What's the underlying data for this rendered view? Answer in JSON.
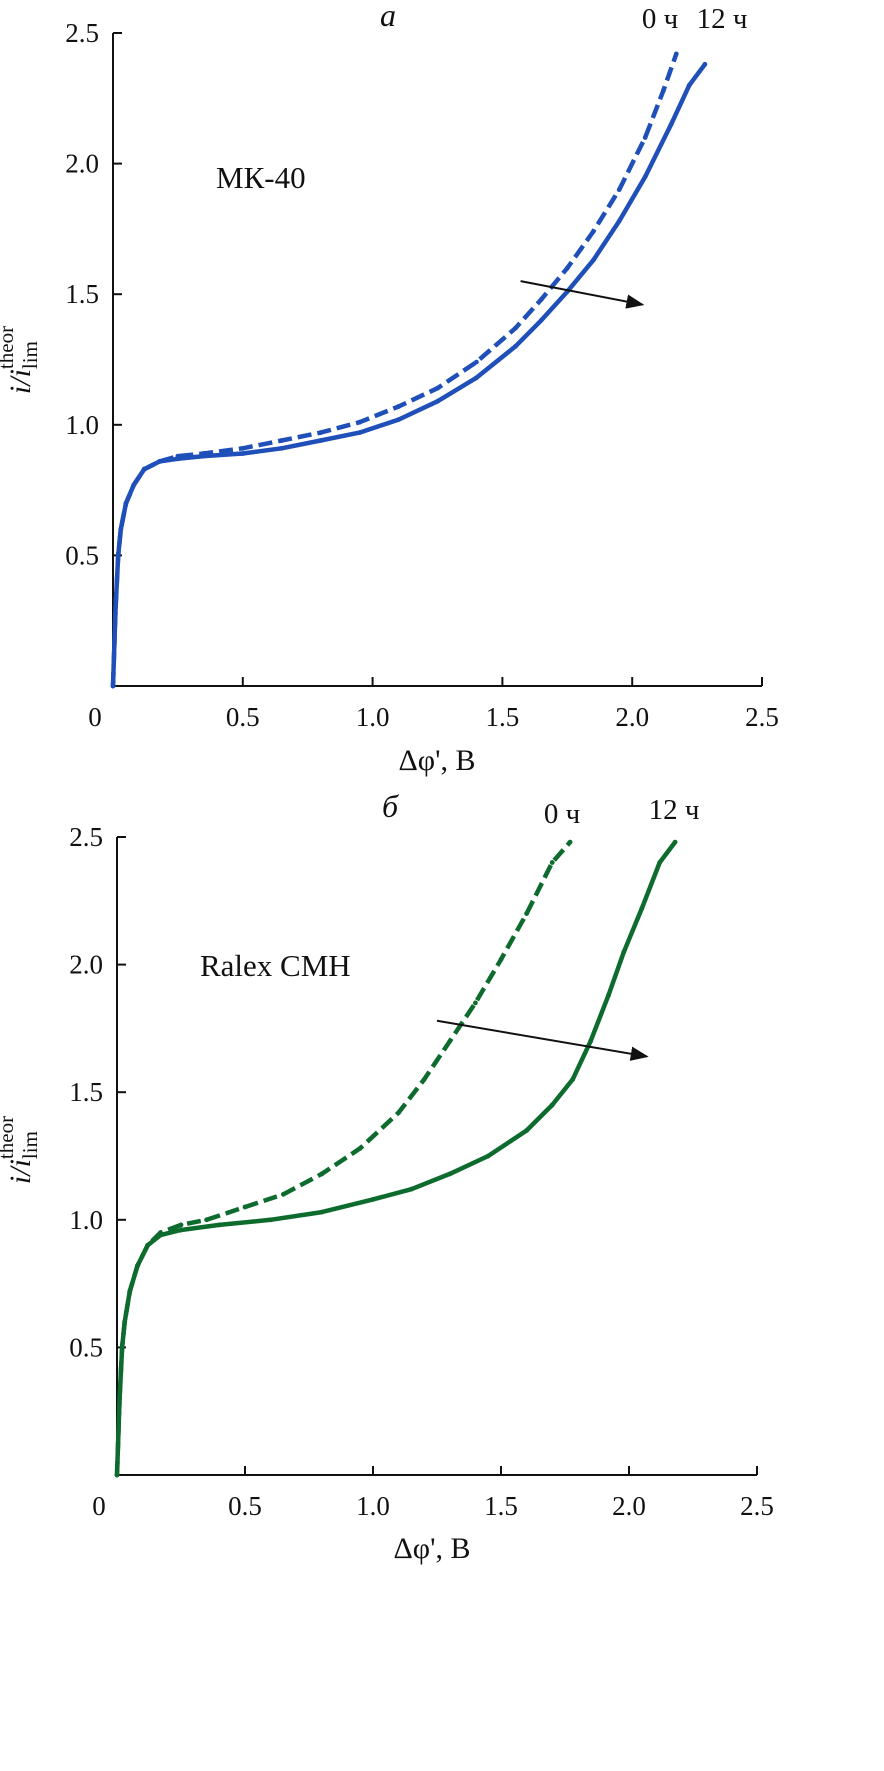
{
  "chart_data": [
    {
      "type": "line",
      "panel_label": "а",
      "annotation": "МК-40",
      "xlabel": "Δφ', В",
      "ylabel": {
        "main": "i/i",
        "sub": "lim",
        "sup": "theor"
      },
      "xlim": [
        0,
        2.5
      ],
      "ylim": [
        0,
        2.5
      ],
      "xticks": [
        "0",
        "0.5",
        "1.0",
        "1.5",
        "2.0",
        "2.5"
      ],
      "yticks": [
        "0.5",
        "1.0",
        "1.5",
        "2.0",
        "2.5"
      ],
      "arrow": {
        "from": [
          1.57,
          1.55
        ],
        "to": [
          2.04,
          1.46
        ]
      },
      "series": [
        {
          "name": "0 ч",
          "color": "#1f4fb8",
          "dash": "dashed",
          "x": [
            0.0,
            0.01,
            0.02,
            0.03,
            0.05,
            0.08,
            0.12,
            0.18,
            0.25,
            0.35,
            0.5,
            0.65,
            0.8,
            0.95,
            1.1,
            1.25,
            1.4,
            1.55,
            1.65,
            1.75,
            1.85,
            1.95,
            2.05,
            2.12,
            2.17
          ],
          "y": [
            0.0,
            0.3,
            0.5,
            0.6,
            0.7,
            0.77,
            0.83,
            0.86,
            0.88,
            0.89,
            0.91,
            0.94,
            0.97,
            1.01,
            1.07,
            1.14,
            1.24,
            1.37,
            1.48,
            1.6,
            1.74,
            1.9,
            2.1,
            2.28,
            2.42
          ]
        },
        {
          "name": "12 ч",
          "color": "#1f4fb8",
          "dash": "solid",
          "x": [
            0.0,
            0.01,
            0.02,
            0.03,
            0.05,
            0.08,
            0.12,
            0.18,
            0.25,
            0.35,
            0.5,
            0.65,
            0.8,
            0.95,
            1.1,
            1.25,
            1.4,
            1.55,
            1.65,
            1.75,
            1.85,
            1.95,
            2.05,
            2.15,
            2.22,
            2.28
          ],
          "y": [
            0.0,
            0.3,
            0.5,
            0.6,
            0.7,
            0.77,
            0.83,
            0.86,
            0.87,
            0.88,
            0.89,
            0.91,
            0.94,
            0.97,
            1.02,
            1.09,
            1.18,
            1.3,
            1.4,
            1.51,
            1.63,
            1.78,
            1.95,
            2.15,
            2.3,
            2.38
          ]
        }
      ]
    },
    {
      "type": "line",
      "panel_label": "б",
      "annotation": "Ralex CMH",
      "xlabel": "Δφ', В",
      "ylabel": {
        "main": "i/i",
        "sub": "lim",
        "sup": "theor"
      },
      "xlim": [
        0,
        2.5
      ],
      "ylim": [
        0,
        2.5
      ],
      "xticks": [
        "0",
        "0.5",
        "1.0",
        "1.5",
        "2.0",
        "2.5"
      ],
      "yticks": [
        "0.5",
        "1.0",
        "1.5",
        "2.0",
        "2.5"
      ],
      "arrow": {
        "from": [
          1.25,
          1.78
        ],
        "to": [
          2.07,
          1.64
        ]
      },
      "series": [
        {
          "name": "0 ч",
          "color": "#0d6b2e",
          "dash": "dashed",
          "x": [
            0.0,
            0.01,
            0.02,
            0.03,
            0.05,
            0.08,
            0.12,
            0.17,
            0.25,
            0.35,
            0.5,
            0.65,
            0.8,
            0.95,
            1.1,
            1.2,
            1.3,
            1.4,
            1.5,
            1.6,
            1.7,
            1.77
          ],
          "y": [
            0.0,
            0.3,
            0.5,
            0.6,
            0.72,
            0.82,
            0.9,
            0.95,
            0.98,
            1.0,
            1.05,
            1.1,
            1.18,
            1.28,
            1.42,
            1.55,
            1.7,
            1.85,
            2.02,
            2.2,
            2.4,
            2.48
          ]
        },
        {
          "name": "12 ч",
          "color": "#0d6b2e",
          "dash": "solid",
          "x": [
            0.0,
            0.01,
            0.02,
            0.03,
            0.05,
            0.08,
            0.12,
            0.17,
            0.25,
            0.4,
            0.6,
            0.8,
            1.0,
            1.15,
            1.3,
            1.45,
            1.6,
            1.7,
            1.78,
            1.85,
            1.92,
            1.98,
            2.05,
            2.12,
            2.18
          ],
          "y": [
            0.0,
            0.3,
            0.5,
            0.6,
            0.72,
            0.82,
            0.9,
            0.94,
            0.96,
            0.98,
            1.0,
            1.03,
            1.08,
            1.12,
            1.18,
            1.25,
            1.35,
            1.45,
            1.55,
            1.7,
            1.88,
            2.05,
            2.22,
            2.4,
            2.48
          ]
        }
      ]
    }
  ]
}
